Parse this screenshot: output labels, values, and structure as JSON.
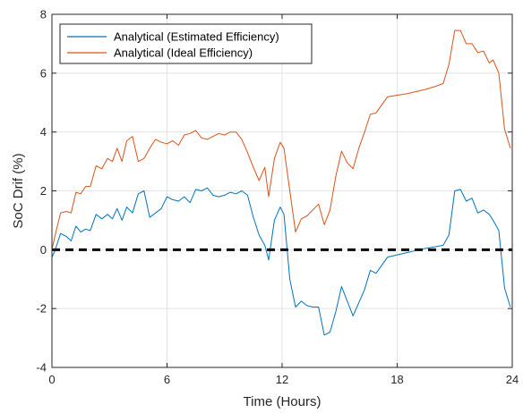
{
  "chart_data": {
    "type": "line",
    "title": "",
    "xlabel": "Time (Hours)",
    "ylabel": "SoC Drif (%)",
    "xlim": [
      0,
      24
    ],
    "ylim": [
      -4,
      8
    ],
    "xticks": [
      0,
      6,
      12,
      18,
      24
    ],
    "yticks": [
      -4,
      -2,
      0,
      2,
      4,
      6,
      8
    ],
    "xtick_labels": [
      "0",
      "6",
      "12",
      "18",
      "24"
    ],
    "ytick_labels": [
      "-4",
      "-2",
      "0",
      "2",
      "4",
      "6",
      "8"
    ],
    "grid": true,
    "legend_position": "top-left",
    "reference_line": {
      "y": 0,
      "style": "dashed",
      "color": "#000000"
    },
    "series": [
      {
        "name": "Analytical (Estimated Efficiency)",
        "color": "#0072BD",
        "x": [
          0,
          0.15,
          0.45,
          0.75,
          1.0,
          1.25,
          1.5,
          1.75,
          2.0,
          2.3,
          2.6,
          2.9,
          3.15,
          3.4,
          3.65,
          3.9,
          4.2,
          4.5,
          4.8,
          5.1,
          5.4,
          5.7,
          6.0,
          6.3,
          6.6,
          6.9,
          7.2,
          7.5,
          7.8,
          8.1,
          8.4,
          8.7,
          9.0,
          9.3,
          9.6,
          9.9,
          10.2,
          10.5,
          10.8,
          11.1,
          11.3,
          11.6,
          11.9,
          12.1,
          12.4,
          12.7,
          13.0,
          13.3,
          13.6,
          13.9,
          14.2,
          14.5,
          14.8,
          15.1,
          15.4,
          15.7,
          16.0,
          16.3,
          16.6,
          16.9,
          17.5,
          18.5,
          19.5,
          20.0,
          20.4,
          20.7,
          21.0,
          21.3,
          21.6,
          21.9,
          22.2,
          22.5,
          22.8,
          23.0,
          23.3,
          23.6,
          23.9
        ],
        "y": [
          -0.25,
          -0.05,
          0.55,
          0.45,
          0.3,
          0.8,
          0.6,
          0.7,
          0.65,
          1.2,
          1.05,
          1.2,
          1.05,
          1.4,
          1.0,
          1.45,
          1.25,
          1.9,
          2.0,
          1.1,
          1.25,
          1.4,
          1.8,
          1.7,
          1.65,
          1.8,
          1.6,
          2.05,
          2.0,
          2.1,
          1.85,
          1.8,
          1.85,
          1.95,
          1.9,
          2.0,
          1.85,
          1.1,
          0.5,
          0.15,
          -0.35,
          1.0,
          1.45,
          1.2,
          -1.0,
          -1.95,
          -1.75,
          -1.9,
          -1.95,
          -1.95,
          -2.9,
          -2.8,
          -2.1,
          -1.25,
          -1.75,
          -2.25,
          -1.8,
          -1.35,
          -0.7,
          -0.8,
          -0.25,
          -0.1,
          0.05,
          0.1,
          0.15,
          0.5,
          2.0,
          2.05,
          1.65,
          1.75,
          1.25,
          1.35,
          1.2,
          1.0,
          0.65,
          -1.3,
          -1.95
        ]
      },
      {
        "name": "Analytical (Ideal Efficiency)",
        "color": "#D95319",
        "x": [
          0,
          0.15,
          0.45,
          0.75,
          1.0,
          1.25,
          1.5,
          1.75,
          2.0,
          2.3,
          2.6,
          2.9,
          3.15,
          3.4,
          3.65,
          3.9,
          4.2,
          4.5,
          4.8,
          5.1,
          5.4,
          5.7,
          6.0,
          6.3,
          6.6,
          6.9,
          7.2,
          7.5,
          7.8,
          8.1,
          8.4,
          8.7,
          9.0,
          9.3,
          9.6,
          9.9,
          10.2,
          10.5,
          10.8,
          11.1,
          11.3,
          11.6,
          11.9,
          12.1,
          12.4,
          12.7,
          13.0,
          13.3,
          13.6,
          13.9,
          14.2,
          14.5,
          14.8,
          15.1,
          15.4,
          15.7,
          16.0,
          16.3,
          16.6,
          16.9,
          17.5,
          18.5,
          19.5,
          20.0,
          20.4,
          20.7,
          21.0,
          21.3,
          21.6,
          21.9,
          22.2,
          22.5,
          22.8,
          23.0,
          23.3,
          23.6,
          23.9
        ],
        "y": [
          0.0,
          0.45,
          1.25,
          1.3,
          1.25,
          1.95,
          1.9,
          2.15,
          2.15,
          2.85,
          2.75,
          3.1,
          3.0,
          3.45,
          3.0,
          3.7,
          3.85,
          3.0,
          3.1,
          3.45,
          3.75,
          3.65,
          3.6,
          3.7,
          3.55,
          3.9,
          3.95,
          4.05,
          3.8,
          3.75,
          3.85,
          3.95,
          3.9,
          4.0,
          4.0,
          3.75,
          3.3,
          2.8,
          2.35,
          2.8,
          1.8,
          3.1,
          3.65,
          3.45,
          2.0,
          0.6,
          1.05,
          1.15,
          1.35,
          1.55,
          0.85,
          1.35,
          2.5,
          3.35,
          2.95,
          2.75,
          3.45,
          4.0,
          4.6,
          4.65,
          5.2,
          5.3,
          5.45,
          5.55,
          5.65,
          6.3,
          7.45,
          7.45,
          7.0,
          7.0,
          6.7,
          6.75,
          6.35,
          6.45,
          6.0,
          4.1,
          3.45
        ]
      }
    ]
  }
}
